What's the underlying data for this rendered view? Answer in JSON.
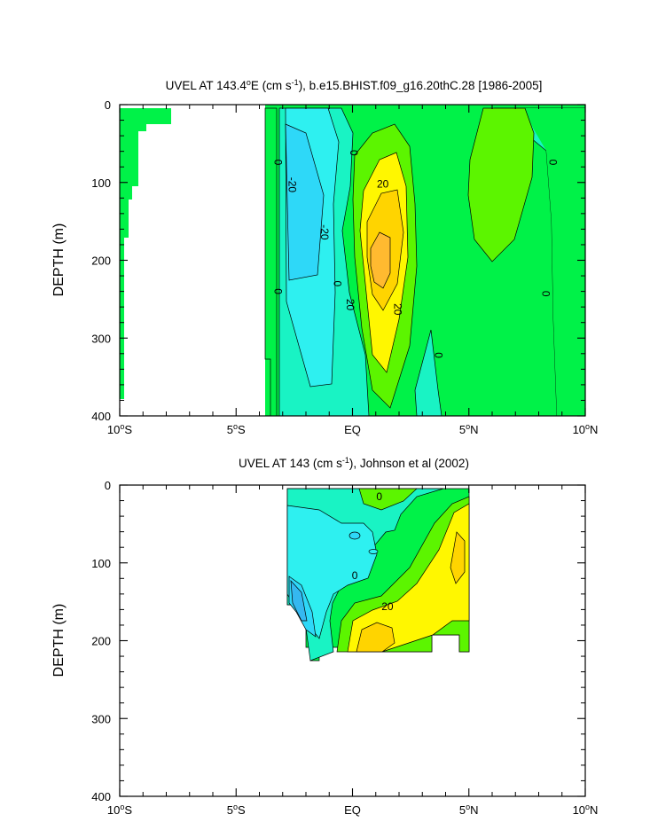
{
  "chart_data": [
    {
      "type": "heatmap",
      "title_main": "UVEL AT 143.4",
      "title_deg": "o",
      "title_unit_a": "E (cm s",
      "title_exp": "-1",
      "title_rest": "), b.e15.BHIST.f09_g16.20thC.28 [1986-2005]",
      "ylabel": "DEPTH (m)",
      "xlim": [
        -10,
        10
      ],
      "ylim": [
        0,
        400
      ],
      "y_reversed": true,
      "y_ticks": [
        "0",
        "100",
        "200",
        "300",
        "400"
      ],
      "x_ticks": [
        {
          "num": "10",
          "sup": "o",
          "hemi": "S"
        },
        {
          "num": "5",
          "sup": "o",
          "hemi": "S"
        },
        {
          "num": "EQ",
          "sup": "",
          "hemi": ""
        },
        {
          "num": "5",
          "sup": "o",
          "hemi": "N"
        },
        {
          "num": "10",
          "sup": "o",
          "hemi": "N"
        }
      ],
      "contour_levels": [
        -30,
        -20,
        -10,
        0,
        10,
        20,
        30,
        40,
        50
      ],
      "contour_labels": [
        {
          "text": "0",
          "x": -3.2,
          "y": 74
        },
        {
          "text": "-20",
          "x": -2.6,
          "y": 103
        },
        {
          "text": "-20",
          "x": -1.2,
          "y": 164
        },
        {
          "text": "0",
          "x": 0.05,
          "y": 62
        },
        {
          "text": "0",
          "x": -0.65,
          "y": 230
        },
        {
          "text": "20",
          "x": 1.3,
          "y": 102
        },
        {
          "text": "20",
          "x": -0.1,
          "y": 257
        },
        {
          "text": "20",
          "x": 1.95,
          "y": 263
        },
        {
          "text": "0",
          "x": 3.7,
          "y": 322
        },
        {
          "text": "0",
          "x": 8.6,
          "y": 74
        },
        {
          "text": "0",
          "x": 8.3,
          "y": 243
        },
        {
          "text": "0",
          "x": -3.2,
          "y": 240
        }
      ]
    },
    {
      "type": "heatmap",
      "title_main": "UVEL AT 143 (cm s",
      "title_exp": "-1",
      "title_rest": "), Johnson et al (2002)",
      "ylabel": "DEPTH (m)",
      "xlim": [
        -10,
        10
      ],
      "ylim": [
        0,
        400
      ],
      "y_reversed": true,
      "y_ticks": [
        "0",
        "100",
        "200",
        "300",
        "400"
      ],
      "x_ticks": [
        {
          "num": "10",
          "sup": "o",
          "hemi": "S"
        },
        {
          "num": "5",
          "sup": "o",
          "hemi": "S"
        },
        {
          "num": "EQ",
          "sup": "",
          "hemi": ""
        },
        {
          "num": "5",
          "sup": "o",
          "hemi": "N"
        },
        {
          "num": "10",
          "sup": "o",
          "hemi": "N"
        }
      ],
      "contour_levels": [
        -30,
        -20,
        -10,
        0,
        10,
        20,
        30,
        40
      ],
      "contour_labels": [
        {
          "text": "0",
          "x": 1.15,
          "y": 15
        },
        {
          "text": "0",
          "x": 0.1,
          "y": 116
        },
        {
          "text": "20",
          "x": 1.5,
          "y": 156
        }
      ]
    }
  ],
  "colors": {
    "lt_minus30": "#35b8f0",
    "minus30_minus20": "#2ed8f8",
    "minus20_minus10": "#2ef0f0",
    "minus10_0": "#19f3c4",
    "zero_10": "#00f248",
    "ten_20": "#5cf500",
    "twenty_30": "#fff700",
    "thirty_40": "#ffd400",
    "gt_40": "#ffba30",
    "line": "#000000"
  }
}
